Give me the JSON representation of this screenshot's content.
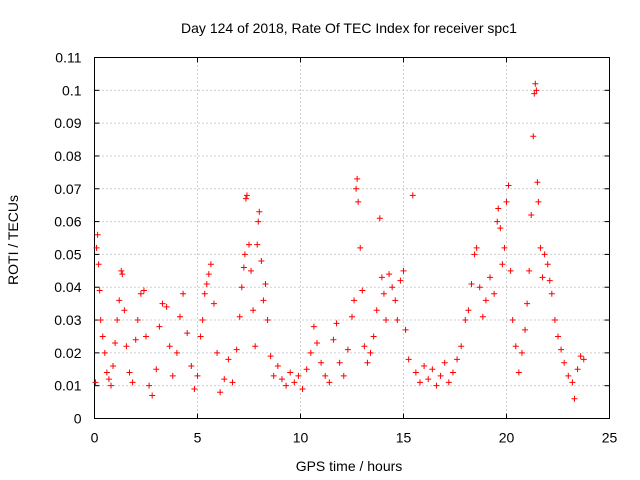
{
  "chart_data": {
    "type": "scatter",
    "title": "Day 124 of 2018, Rate Of TEC Index for receiver spc1",
    "xlabel": "GPS time / hours",
    "ylabel": "ROTI / TECUs",
    "xlim": [
      0,
      25
    ],
    "ylim": [
      0,
      0.11
    ],
    "x_ticks": [
      0,
      5,
      10,
      15,
      20,
      25
    ],
    "x_tick_labels": [
      "0",
      "5",
      "10",
      "15",
      "20",
      "25"
    ],
    "y_ticks": [
      0,
      0.01,
      0.02,
      0.03,
      0.04,
      0.05,
      0.06,
      0.07,
      0.08,
      0.09,
      0.1,
      0.11
    ],
    "y_tick_labels": [
      "0",
      "0.01",
      "0.02",
      "0.03",
      "0.04",
      "0.05",
      "0.06",
      "0.07",
      "0.08",
      "0.09",
      "0.1",
      "0.11"
    ],
    "grid": true,
    "marker": "+",
    "color": "#ff0000",
    "series": [
      {
        "name": "spc1",
        "points": [
          [
            0.05,
            0.011
          ],
          [
            0.1,
            0.052
          ],
          [
            0.15,
            0.056
          ],
          [
            0.2,
            0.047
          ],
          [
            0.25,
            0.039
          ],
          [
            0.3,
            0.03
          ],
          [
            0.4,
            0.025
          ],
          [
            0.5,
            0.02
          ],
          [
            0.6,
            0.014
          ],
          [
            0.7,
            0.012
          ],
          [
            0.8,
            0.01
          ],
          [
            0.9,
            0.016
          ],
          [
            1.0,
            0.023
          ],
          [
            1.1,
            0.03
          ],
          [
            1.2,
            0.036
          ],
          [
            1.3,
            0.045
          ],
          [
            1.35,
            0.044
          ],
          [
            1.45,
            0.033
          ],
          [
            1.55,
            0.022
          ],
          [
            1.7,
            0.014
          ],
          [
            1.85,
            0.011
          ],
          [
            2.0,
            0.024
          ],
          [
            2.1,
            0.03
          ],
          [
            2.25,
            0.038
          ],
          [
            2.4,
            0.039
          ],
          [
            2.5,
            0.025
          ],
          [
            2.65,
            0.01
          ],
          [
            2.8,
            0.007
          ],
          [
            3.0,
            0.015
          ],
          [
            3.15,
            0.028
          ],
          [
            3.3,
            0.035
          ],
          [
            3.5,
            0.034
          ],
          [
            3.65,
            0.022
          ],
          [
            3.8,
            0.013
          ],
          [
            4.0,
            0.02
          ],
          [
            4.15,
            0.031
          ],
          [
            4.3,
            0.038
          ],
          [
            4.5,
            0.026
          ],
          [
            4.7,
            0.016
          ],
          [
            4.85,
            0.009
          ],
          [
            5.0,
            0.013
          ],
          [
            5.15,
            0.025
          ],
          [
            5.25,
            0.03
          ],
          [
            5.35,
            0.038
          ],
          [
            5.45,
            0.041
          ],
          [
            5.55,
            0.044
          ],
          [
            5.65,
            0.047
          ],
          [
            5.8,
            0.035
          ],
          [
            5.95,
            0.02
          ],
          [
            6.1,
            0.008
          ],
          [
            6.3,
            0.012
          ],
          [
            6.5,
            0.018
          ],
          [
            6.7,
            0.011
          ],
          [
            6.9,
            0.021
          ],
          [
            7.05,
            0.031
          ],
          [
            7.15,
            0.04
          ],
          [
            7.25,
            0.046
          ],
          [
            7.3,
            0.05
          ],
          [
            7.35,
            0.067
          ],
          [
            7.4,
            0.068
          ],
          [
            7.5,
            0.053
          ],
          [
            7.6,
            0.045
          ],
          [
            7.7,
            0.033
          ],
          [
            7.8,
            0.022
          ],
          [
            7.9,
            0.053
          ],
          [
            7.95,
            0.06
          ],
          [
            8.0,
            0.063
          ],
          [
            8.1,
            0.048
          ],
          [
            8.2,
            0.036
          ],
          [
            8.3,
            0.041
          ],
          [
            8.4,
            0.03
          ],
          [
            8.55,
            0.019
          ],
          [
            8.7,
            0.013
          ],
          [
            8.9,
            0.016
          ],
          [
            9.1,
            0.012
          ],
          [
            9.3,
            0.01
          ],
          [
            9.5,
            0.014
          ],
          [
            9.7,
            0.011
          ],
          [
            9.9,
            0.013
          ],
          [
            10.1,
            0.009
          ],
          [
            10.3,
            0.015
          ],
          [
            10.5,
            0.02
          ],
          [
            10.65,
            0.028
          ],
          [
            10.8,
            0.023
          ],
          [
            11.0,
            0.017
          ],
          [
            11.2,
            0.013
          ],
          [
            11.4,
            0.011
          ],
          [
            11.6,
            0.024
          ],
          [
            11.75,
            0.029
          ],
          [
            11.9,
            0.017
          ],
          [
            12.1,
            0.013
          ],
          [
            12.3,
            0.021
          ],
          [
            12.5,
            0.031
          ],
          [
            12.6,
            0.036
          ],
          [
            12.7,
            0.07
          ],
          [
            12.75,
            0.073
          ],
          [
            12.8,
            0.066
          ],
          [
            12.9,
            0.052
          ],
          [
            13.0,
            0.039
          ],
          [
            13.1,
            0.022
          ],
          [
            13.25,
            0.017
          ],
          [
            13.4,
            0.02
          ],
          [
            13.55,
            0.025
          ],
          [
            13.7,
            0.033
          ],
          [
            13.85,
            0.061
          ],
          [
            13.95,
            0.043
          ],
          [
            14.05,
            0.038
          ],
          [
            14.15,
            0.03
          ],
          [
            14.3,
            0.044
          ],
          [
            14.45,
            0.04
          ],
          [
            14.6,
            0.036
          ],
          [
            14.7,
            0.03
          ],
          [
            14.85,
            0.042
          ],
          [
            15.0,
            0.045
          ],
          [
            15.1,
            0.027
          ],
          [
            15.25,
            0.018
          ],
          [
            15.45,
            0.068
          ],
          [
            15.6,
            0.014
          ],
          [
            15.8,
            0.011
          ],
          [
            16.0,
            0.016
          ],
          [
            16.2,
            0.012
          ],
          [
            16.4,
            0.015
          ],
          [
            16.6,
            0.01
          ],
          [
            16.8,
            0.013
          ],
          [
            17.0,
            0.017
          ],
          [
            17.2,
            0.011
          ],
          [
            17.4,
            0.014
          ],
          [
            17.6,
            0.018
          ],
          [
            17.8,
            0.022
          ],
          [
            18.0,
            0.03
          ],
          [
            18.15,
            0.033
          ],
          [
            18.3,
            0.041
          ],
          [
            18.45,
            0.05
          ],
          [
            18.55,
            0.052
          ],
          [
            18.7,
            0.04
          ],
          [
            18.85,
            0.031
          ],
          [
            19.0,
            0.036
          ],
          [
            19.2,
            0.043
          ],
          [
            19.4,
            0.038
          ],
          [
            19.55,
            0.06
          ],
          [
            19.6,
            0.064
          ],
          [
            19.7,
            0.058
          ],
          [
            19.8,
            0.047
          ],
          [
            19.9,
            0.052
          ],
          [
            20.0,
            0.066
          ],
          [
            20.1,
            0.071
          ],
          [
            20.2,
            0.045
          ],
          [
            20.3,
            0.03
          ],
          [
            20.45,
            0.022
          ],
          [
            20.6,
            0.014
          ],
          [
            20.75,
            0.02
          ],
          [
            20.9,
            0.027
          ],
          [
            21.0,
            0.035
          ],
          [
            21.1,
            0.045
          ],
          [
            21.2,
            0.062
          ],
          [
            21.3,
            0.086
          ],
          [
            21.35,
            0.099
          ],
          [
            21.4,
            0.102
          ],
          [
            21.45,
            0.1
          ],
          [
            21.5,
            0.072
          ],
          [
            21.55,
            0.066
          ],
          [
            21.65,
            0.052
          ],
          [
            21.75,
            0.043
          ],
          [
            21.85,
            0.05
          ],
          [
            22.0,
            0.047
          ],
          [
            22.1,
            0.042
          ],
          [
            22.2,
            0.038
          ],
          [
            22.35,
            0.03
          ],
          [
            22.5,
            0.025
          ],
          [
            22.65,
            0.021
          ],
          [
            22.8,
            0.017
          ],
          [
            23.0,
            0.013
          ],
          [
            23.2,
            0.011
          ],
          [
            23.3,
            0.006
          ],
          [
            23.45,
            0.015
          ],
          [
            23.6,
            0.019
          ],
          [
            23.75,
            0.018
          ]
        ]
      }
    ]
  }
}
